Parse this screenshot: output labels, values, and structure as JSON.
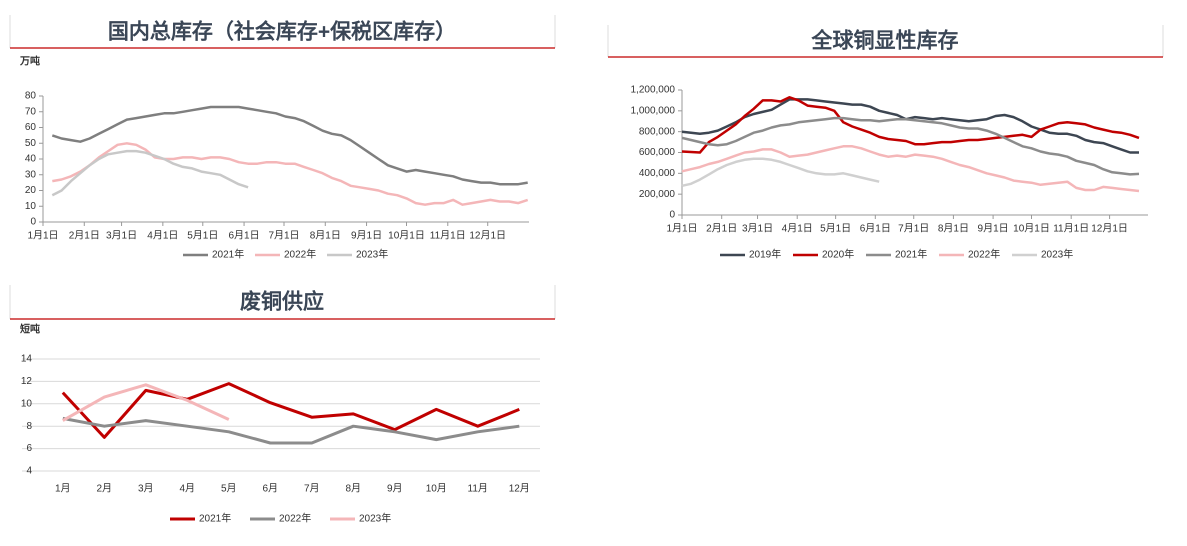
{
  "chart_data": [
    {
      "type": "line",
      "title": "国内总库存（社会库存+保税区库存）",
      "y_label": "万吨",
      "x": [
        8,
        15,
        22,
        29,
        36,
        43,
        50,
        57,
        64,
        71,
        78,
        85,
        92,
        99,
        106,
        113,
        120,
        127,
        134,
        141,
        148,
        155,
        162,
        169,
        176,
        183,
        190,
        197,
        204,
        211,
        218,
        225,
        232,
        239,
        246,
        253,
        260,
        267,
        274,
        281,
        288,
        295,
        302,
        309,
        316,
        323,
        330,
        337,
        344,
        351,
        358,
        365
      ],
      "xlim": [
        1,
        366
      ],
      "xticks": [
        {
          "value": 1,
          "label": "1月1日"
        },
        {
          "value": 32,
          "label": "2月1日"
        },
        {
          "value": 60,
          "label": "3月1日"
        },
        {
          "value": 91,
          "label": "4月1日"
        },
        {
          "value": 121,
          "label": "5月1日"
        },
        {
          "value": 152,
          "label": "6月1日"
        },
        {
          "value": 182,
          "label": "7月1日"
        },
        {
          "value": 213,
          "label": "8月1日"
        },
        {
          "value": 244,
          "label": "9月1日"
        },
        {
          "value": 274,
          "label": "10月1日"
        },
        {
          "value": 305,
          "label": "11月1日"
        },
        {
          "value": 335,
          "label": "12月1日"
        }
      ],
      "ylim": [
        0,
        80
      ],
      "yticks": [
        0,
        10,
        20,
        30,
        40,
        50,
        60,
        70,
        80
      ],
      "grid": false,
      "series": [
        {
          "name": "2021年",
          "color": "#7f7f7f",
          "values": [
            55,
            53,
            52,
            51,
            53,
            56,
            59,
            62,
            65,
            66,
            67,
            68,
            69,
            69,
            70,
            71,
            72,
            73,
            73,
            73,
            73,
            72,
            71,
            70,
            69,
            67,
            66,
            64,
            61,
            58,
            56,
            55,
            52,
            48,
            44,
            40,
            36,
            34,
            32,
            33,
            32,
            31,
            30,
            29,
            27,
            26,
            25,
            25,
            24,
            24,
            24,
            25
          ]
        },
        {
          "name": "2022年",
          "color": "#f4b6b8",
          "values": [
            26,
            27,
            29,
            32,
            36,
            41,
            45,
            49,
            50,
            49,
            46,
            41,
            40,
            40,
            41,
            41,
            40,
            41,
            41,
            40,
            38,
            37,
            37,
            38,
            38,
            37,
            37,
            35,
            33,
            31,
            28,
            26,
            23,
            22,
            21,
            20,
            18,
            17,
            15,
            12,
            11,
            12,
            12,
            14,
            11,
            12,
            13,
            14,
            13,
            13,
            12,
            14
          ]
        },
        {
          "name": "2023年",
          "color": "#c8c8c8",
          "values": [
            17,
            20,
            26,
            31,
            36,
            40,
            43,
            44,
            45,
            45,
            44,
            42,
            40,
            37,
            35,
            34,
            32,
            31,
            30,
            27,
            24,
            22,
            null,
            null,
            null,
            null,
            null,
            null,
            null,
            null,
            null,
            null,
            null,
            null,
            null,
            null,
            null,
            null,
            null,
            null,
            null,
            null,
            null,
            null,
            null,
            null,
            null,
            null,
            null,
            null,
            null,
            null
          ]
        }
      ]
    },
    {
      "type": "line",
      "title": "全球铜显性库存",
      "x": [
        1,
        8,
        15,
        22,
        29,
        36,
        43,
        50,
        57,
        64,
        71,
        78,
        85,
        92,
        99,
        106,
        113,
        120,
        127,
        134,
        141,
        148,
        155,
        162,
        169,
        176,
        183,
        190,
        197,
        204,
        211,
        218,
        225,
        232,
        239,
        246,
        253,
        260,
        267,
        274,
        281,
        288,
        295,
        302,
        309,
        316,
        323,
        330,
        337,
        344,
        351,
        358
      ],
      "xlim": [
        1,
        365
      ],
      "xticks": [
        {
          "value": 1,
          "label": "1月1日"
        },
        {
          "value": 32,
          "label": "2月1日"
        },
        {
          "value": 60,
          "label": "3月1日"
        },
        {
          "value": 91,
          "label": "4月1日"
        },
        {
          "value": 121,
          "label": "5月1日"
        },
        {
          "value": 152,
          "label": "6月1日"
        },
        {
          "value": 182,
          "label": "7月1日"
        },
        {
          "value": 213,
          "label": "8月1日"
        },
        {
          "value": 244,
          "label": "9月1日"
        },
        {
          "value": 274,
          "label": "10月1日"
        },
        {
          "value": 305,
          "label": "11月1日"
        },
        {
          "value": 335,
          "label": "12月1日"
        }
      ],
      "ylim": [
        0,
        1200000
      ],
      "yticks": [
        0,
        {
          "value": 200000,
          "label": "200,000"
        },
        {
          "value": 400000,
          "label": "400,000"
        },
        {
          "value": 600000,
          "label": "600,000"
        },
        {
          "value": 800000,
          "label": "800,000"
        },
        {
          "value": 1000000,
          "label": "1,000,000"
        },
        {
          "value": 1200000,
          "label": "1,200,000"
        }
      ],
      "grid": false,
      "series": [
        {
          "name": "2019年",
          "color": "#3d4652",
          "values": [
            800000,
            790000,
            780000,
            790000,
            810000,
            850000,
            890000,
            940000,
            970000,
            990000,
            1010000,
            1060000,
            1110000,
            1110000,
            1110000,
            1100000,
            1090000,
            1080000,
            1070000,
            1060000,
            1060000,
            1040000,
            1000000,
            980000,
            960000,
            920000,
            940000,
            930000,
            920000,
            930000,
            920000,
            910000,
            900000,
            910000,
            920000,
            950000,
            960000,
            940000,
            900000,
            850000,
            820000,
            790000,
            780000,
            780000,
            760000,
            720000,
            700000,
            690000,
            660000,
            630000,
            600000,
            600000
          ]
        },
        {
          "name": "2020年",
          "color": "#c00000",
          "values": [
            610000,
            605000,
            600000,
            700000,
            750000,
            810000,
            870000,
            950000,
            1020000,
            1100000,
            1100000,
            1090000,
            1130000,
            1100000,
            1050000,
            1040000,
            1030000,
            1000000,
            890000,
            850000,
            820000,
            790000,
            750000,
            730000,
            720000,
            710000,
            680000,
            680000,
            690000,
            700000,
            700000,
            710000,
            720000,
            720000,
            730000,
            740000,
            750000,
            760000,
            770000,
            750000,
            820000,
            850000,
            880000,
            890000,
            880000,
            870000,
            840000,
            820000,
            800000,
            790000,
            770000,
            740000
          ]
        },
        {
          "name": "2021年",
          "color": "#8c8c8c",
          "values": [
            740000,
            720000,
            700000,
            680000,
            670000,
            680000,
            710000,
            750000,
            790000,
            810000,
            840000,
            860000,
            870000,
            890000,
            900000,
            910000,
            920000,
            930000,
            930000,
            920000,
            910000,
            910000,
            900000,
            910000,
            920000,
            920000,
            910000,
            900000,
            890000,
            880000,
            860000,
            840000,
            830000,
            830000,
            810000,
            780000,
            740000,
            700000,
            660000,
            640000,
            610000,
            590000,
            580000,
            560000,
            520000,
            500000,
            480000,
            440000,
            410000,
            400000,
            390000,
            395000
          ]
        },
        {
          "name": "2022年",
          "color": "#f4b6b8",
          "values": [
            420000,
            440000,
            460000,
            490000,
            510000,
            540000,
            570000,
            600000,
            610000,
            630000,
            630000,
            600000,
            560000,
            570000,
            580000,
            600000,
            620000,
            640000,
            660000,
            660000,
            640000,
            610000,
            580000,
            560000,
            570000,
            560000,
            580000,
            570000,
            560000,
            540000,
            510000,
            480000,
            460000,
            430000,
            400000,
            380000,
            360000,
            330000,
            320000,
            310000,
            290000,
            300000,
            310000,
            320000,
            260000,
            240000,
            240000,
            270000,
            260000,
            250000,
            240000,
            230000
          ]
        },
        {
          "name": "2023年",
          "color": "#d0d0d0",
          "values": [
            280000,
            300000,
            340000,
            390000,
            440000,
            480000,
            510000,
            530000,
            540000,
            540000,
            530000,
            510000,
            480000,
            450000,
            420000,
            400000,
            390000,
            390000,
            400000,
            380000,
            360000,
            340000,
            320000,
            null,
            null,
            null,
            null,
            null,
            null,
            null,
            null,
            null,
            null,
            null,
            null,
            null,
            null,
            null,
            null,
            null,
            null,
            null,
            null,
            null,
            null,
            null,
            null,
            null,
            null,
            null,
            null,
            null
          ]
        }
      ]
    },
    {
      "type": "line",
      "title": "废铜供应",
      "y_label": "短吨",
      "categories": [
        "1月",
        "2月",
        "3月",
        "4月",
        "5月",
        "6月",
        "7月",
        "8月",
        "9月",
        "10月",
        "11月",
        "12月"
      ],
      "ylim": [
        4,
        14
      ],
      "yticks": [
        4,
        6,
        8,
        10,
        12,
        14
      ],
      "grid": true,
      "series": [
        {
          "name": "2021年",
          "color": "#c00000",
          "values": [
            11,
            7,
            11.2,
            10.4,
            11.8,
            10.1,
            8.8,
            9.1,
            7.7,
            9.5,
            8.0,
            9.5
          ]
        },
        {
          "name": "2022年",
          "color": "#8c8c8c",
          "values": [
            8.7,
            8.0,
            8.5,
            8.0,
            7.5,
            6.5,
            6.5,
            8.0,
            7.5,
            6.8,
            7.5,
            8.0
          ]
        },
        {
          "name": "2023年",
          "color": "#f4b6b8",
          "values": [
            8.5,
            10.6,
            11.7,
            10.3,
            8.6,
            null,
            null,
            null,
            null,
            null,
            null,
            null
          ]
        }
      ]
    }
  ]
}
